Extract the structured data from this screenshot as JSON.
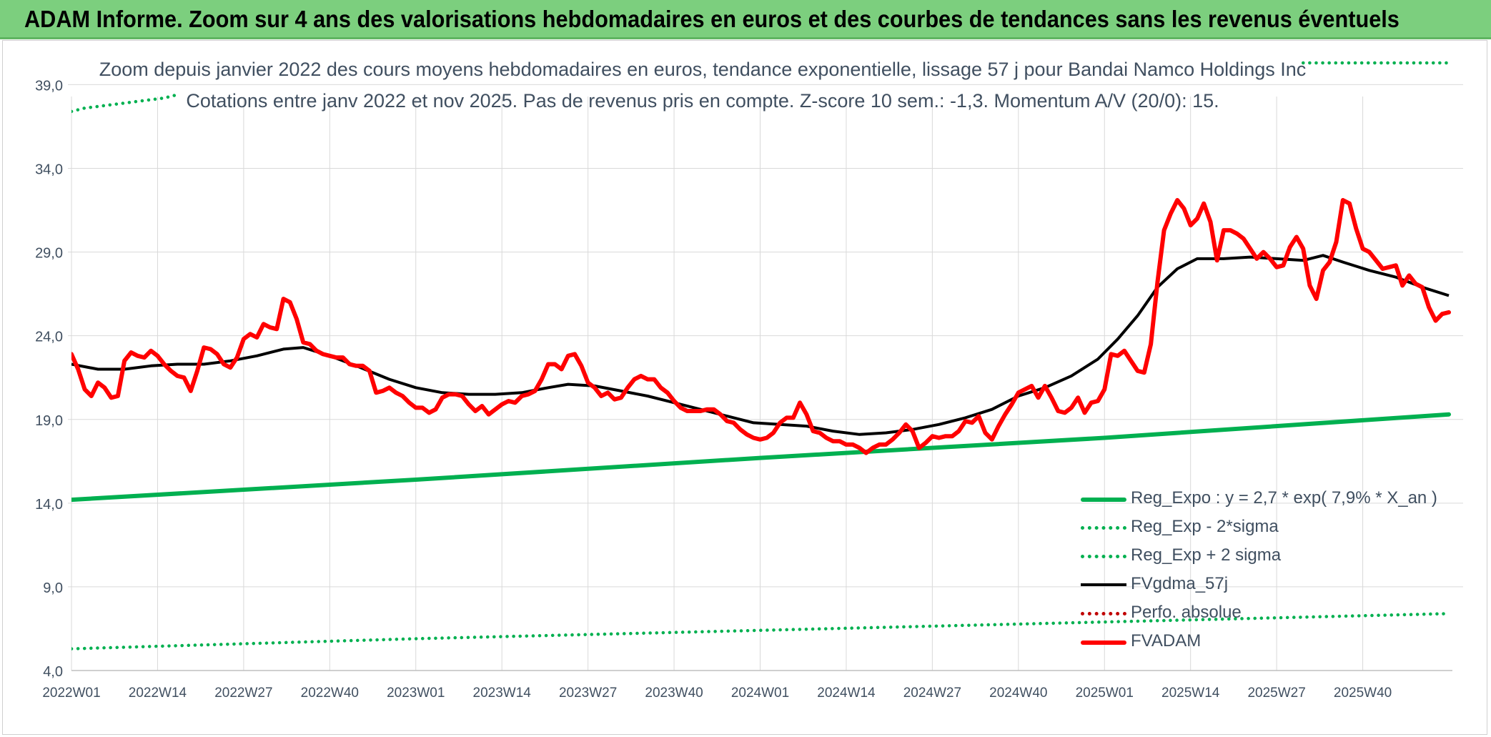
{
  "banner": {
    "title": "ADAM Informe. Zoom sur 4 ans des valorisations hebdomadaires en euros et des courbes de tendances sans les revenus éventuels"
  },
  "colors": {
    "banner_bg": "#7ccf7e",
    "reg_expo": "#00b050",
    "fvgdma": "#000000",
    "fvadam": "#ff0000",
    "perfo": "#c00000",
    "grid": "#d9d9d9",
    "text": "#404f60"
  },
  "chart_data": {
    "type": "line",
    "title": "Zoom depuis janvier 2022 des cours moyens hebdomadaires en euros, tendance exponentielle, lissage 57 j pour Bandai Namco Holdings Inc",
    "subtitle": "Cotations entre janv 2022 et nov 2025. Pas de revenus pris en compte. Z-score 10 sem.: -1,3. Momentum A/V (20/0): 15.",
    "xlabel": "",
    "ylabel": "",
    "ylim": [
      4,
      40
    ],
    "y_ticks": [
      "4,0",
      "9,0",
      "14,0",
      "19,0",
      "24,0",
      "29,0",
      "34,0",
      "39,0"
    ],
    "y_tick_values": [
      4,
      9,
      14,
      19,
      24,
      29,
      34,
      39
    ],
    "x_tick_labels": [
      "2022W01",
      "2022W14",
      "2022W27",
      "2022W40",
      "2023W01",
      "2023W14",
      "2023W27",
      "2023W40",
      "2024W01",
      "2024W14",
      "2024W27",
      "2024W40",
      "2025W01",
      "2025W14",
      "2025W27",
      "2025W40"
    ],
    "x_tick_weeks": [
      0,
      13,
      26,
      39,
      52,
      65,
      78,
      91,
      104,
      117,
      130,
      143,
      156,
      169,
      182,
      195
    ],
    "x_range": [
      0,
      208
    ],
    "grid": true,
    "legend_position": "bottom-right",
    "series": [
      {
        "name": "Reg_Expo : y = 2,7 * exp( 7,9% *  X_an )",
        "style": "solid-thick",
        "color": "#00b050",
        "points": [
          [
            0,
            14.2
          ],
          [
            52,
            15.4
          ],
          [
            104,
            16.7
          ],
          [
            156,
            17.9
          ],
          [
            208,
            19.3
          ]
        ]
      },
      {
        "name": "Reg_Exp - 2*sigma",
        "style": "dotted",
        "color": "#00b050",
        "points": [
          [
            0,
            5.3
          ],
          [
            52,
            5.9
          ],
          [
            104,
            6.4
          ],
          [
            156,
            6.9
          ],
          [
            208,
            7.4
          ]
        ]
      },
      {
        "name": "Reg_Exp + 2 sigma",
        "style": "dotted",
        "color": "#00b050",
        "points": [
          [
            0,
            37.4
          ],
          [
            2,
            37.6
          ],
          [
            4,
            37.7
          ],
          [
            6,
            37.8
          ],
          [
            8,
            37.9
          ],
          [
            10,
            38.0
          ],
          [
            12,
            38.1
          ],
          [
            14,
            38.2
          ],
          [
            16,
            38.4
          ]
        ],
        "points_right": [
          [
            186,
            40.3
          ],
          [
            196,
            40.3
          ],
          [
            208,
            40.3
          ]
        ]
      },
      {
        "name": "FVgdma_57j",
        "style": "solid",
        "color": "#000000",
        "points": [
          [
            0,
            22.3
          ],
          [
            4,
            22.0
          ],
          [
            8,
            22.0
          ],
          [
            12,
            22.2
          ],
          [
            16,
            22.3
          ],
          [
            20,
            22.3
          ],
          [
            24,
            22.5
          ],
          [
            28,
            22.8
          ],
          [
            32,
            23.2
          ],
          [
            35,
            23.3
          ],
          [
            39,
            22.8
          ],
          [
            43,
            22.2
          ],
          [
            48,
            21.4
          ],
          [
            52,
            20.9
          ],
          [
            56,
            20.6
          ],
          [
            60,
            20.5
          ],
          [
            64,
            20.5
          ],
          [
            68,
            20.6
          ],
          [
            72,
            20.9
          ],
          [
            75,
            21.1
          ],
          [
            79,
            21.0
          ],
          [
            83,
            20.7
          ],
          [
            87,
            20.4
          ],
          [
            91,
            20.0
          ],
          [
            95,
            19.6
          ],
          [
            99,
            19.2
          ],
          [
            103,
            18.8
          ],
          [
            107,
            18.7
          ],
          [
            111,
            18.6
          ],
          [
            115,
            18.3
          ],
          [
            119,
            18.1
          ],
          [
            123,
            18.2
          ],
          [
            127,
            18.4
          ],
          [
            131,
            18.7
          ],
          [
            135,
            19.1
          ],
          [
            139,
            19.6
          ],
          [
            143,
            20.4
          ],
          [
            147,
            20.9
          ],
          [
            151,
            21.6
          ],
          [
            155,
            22.6
          ],
          [
            158,
            23.8
          ],
          [
            161,
            25.2
          ],
          [
            164,
            26.9
          ],
          [
            167,
            28.0
          ],
          [
            170,
            28.6
          ],
          [
            174,
            28.6
          ],
          [
            178,
            28.7
          ],
          [
            182,
            28.6
          ],
          [
            186,
            28.5
          ],
          [
            189,
            28.8
          ],
          [
            192,
            28.4
          ],
          [
            196,
            27.9
          ],
          [
            200,
            27.5
          ],
          [
            204,
            26.9
          ],
          [
            208,
            26.4
          ]
        ]
      },
      {
        "name": "Perfo. absolue",
        "style": "dotted",
        "color": "#c00000",
        "points": []
      },
      {
        "name": "FVADAM",
        "style": "solid-thick",
        "color": "#ff0000",
        "points": [
          [
            0,
            22.9
          ],
          [
            1,
            22.0
          ],
          [
            2,
            20.8
          ],
          [
            3,
            20.4
          ],
          [
            4,
            21.2
          ],
          [
            5,
            20.9
          ],
          [
            6,
            20.3
          ],
          [
            7,
            20.4
          ],
          [
            8,
            22.5
          ],
          [
            9,
            23.0
          ],
          [
            10,
            22.8
          ],
          [
            11,
            22.7
          ],
          [
            12,
            23.1
          ],
          [
            13,
            22.8
          ],
          [
            14,
            22.3
          ],
          [
            15,
            21.9
          ],
          [
            16,
            21.6
          ],
          [
            17,
            21.5
          ],
          [
            18,
            20.7
          ],
          [
            19,
            21.9
          ],
          [
            20,
            23.3
          ],
          [
            21,
            23.2
          ],
          [
            22,
            22.9
          ],
          [
            23,
            22.3
          ],
          [
            24,
            22.1
          ],
          [
            25,
            22.7
          ],
          [
            26,
            23.8
          ],
          [
            27,
            24.1
          ],
          [
            28,
            23.9
          ],
          [
            29,
            24.7
          ],
          [
            30,
            24.5
          ],
          [
            31,
            24.4
          ],
          [
            32,
            26.2
          ],
          [
            33,
            26.0
          ],
          [
            34,
            25.0
          ],
          [
            35,
            23.6
          ],
          [
            36,
            23.5
          ],
          [
            37,
            23.1
          ],
          [
            38,
            22.9
          ],
          [
            39,
            22.8
          ],
          [
            40,
            22.7
          ],
          [
            41,
            22.7
          ],
          [
            42,
            22.3
          ],
          [
            43,
            22.2
          ],
          [
            44,
            22.2
          ],
          [
            45,
            21.9
          ],
          [
            46,
            20.6
          ],
          [
            47,
            20.7
          ],
          [
            48,
            20.9
          ],
          [
            49,
            20.6
          ],
          [
            50,
            20.4
          ],
          [
            51,
            20.0
          ],
          [
            52,
            19.7
          ],
          [
            53,
            19.7
          ],
          [
            54,
            19.4
          ],
          [
            55,
            19.6
          ],
          [
            56,
            20.3
          ],
          [
            57,
            20.5
          ],
          [
            58,
            20.5
          ],
          [
            59,
            20.4
          ],
          [
            60,
            19.9
          ],
          [
            61,
            19.5
          ],
          [
            62,
            19.8
          ],
          [
            63,
            19.3
          ],
          [
            64,
            19.6
          ],
          [
            65,
            19.9
          ],
          [
            66,
            20.1
          ],
          [
            67,
            20.0
          ],
          [
            68,
            20.4
          ],
          [
            69,
            20.5
          ],
          [
            70,
            20.7
          ],
          [
            71,
            21.4
          ],
          [
            72,
            22.3
          ],
          [
            73,
            22.3
          ],
          [
            74,
            22.0
          ],
          [
            75,
            22.8
          ],
          [
            76,
            22.9
          ],
          [
            77,
            22.2
          ],
          [
            78,
            21.2
          ],
          [
            79,
            20.9
          ],
          [
            80,
            20.4
          ],
          [
            81,
            20.6
          ],
          [
            82,
            20.2
          ],
          [
            83,
            20.3
          ],
          [
            84,
            20.9
          ],
          [
            85,
            21.4
          ],
          [
            86,
            21.6
          ],
          [
            87,
            21.4
          ],
          [
            88,
            21.4
          ],
          [
            89,
            20.9
          ],
          [
            90,
            20.6
          ],
          [
            91,
            20.1
          ],
          [
            92,
            19.7
          ],
          [
            93,
            19.5
          ],
          [
            94,
            19.5
          ],
          [
            95,
            19.5
          ],
          [
            96,
            19.6
          ],
          [
            97,
            19.6
          ],
          [
            98,
            19.3
          ],
          [
            99,
            18.9
          ],
          [
            100,
            18.8
          ],
          [
            101,
            18.4
          ],
          [
            102,
            18.1
          ],
          [
            103,
            17.9
          ],
          [
            104,
            17.8
          ],
          [
            105,
            17.9
          ],
          [
            106,
            18.2
          ],
          [
            107,
            18.8
          ],
          [
            108,
            19.1
          ],
          [
            109,
            19.1
          ],
          [
            110,
            20.0
          ],
          [
            111,
            19.3
          ],
          [
            112,
            18.3
          ],
          [
            113,
            18.2
          ],
          [
            114,
            17.9
          ],
          [
            115,
            17.7
          ],
          [
            116,
            17.7
          ],
          [
            117,
            17.5
          ],
          [
            118,
            17.5
          ],
          [
            119,
            17.3
          ],
          [
            120,
            17.0
          ],
          [
            121,
            17.3
          ],
          [
            122,
            17.5
          ],
          [
            123,
            17.5
          ],
          [
            124,
            17.8
          ],
          [
            125,
            18.2
          ],
          [
            126,
            18.7
          ],
          [
            127,
            18.3
          ],
          [
            128,
            17.3
          ],
          [
            129,
            17.6
          ],
          [
            130,
            18.0
          ],
          [
            131,
            17.9
          ],
          [
            132,
            18.0
          ],
          [
            133,
            18.0
          ],
          [
            134,
            18.3
          ],
          [
            135,
            18.9
          ],
          [
            136,
            18.8
          ],
          [
            137,
            19.2
          ],
          [
            138,
            18.2
          ],
          [
            139,
            17.8
          ],
          [
            140,
            18.6
          ],
          [
            141,
            19.3
          ],
          [
            142,
            19.9
          ],
          [
            143,
            20.6
          ],
          [
            144,
            20.8
          ],
          [
            145,
            21.0
          ],
          [
            146,
            20.3
          ],
          [
            147,
            21.0
          ],
          [
            148,
            20.3
          ],
          [
            149,
            19.5
          ],
          [
            150,
            19.4
          ],
          [
            151,
            19.7
          ],
          [
            152,
            20.3
          ],
          [
            153,
            19.4
          ],
          [
            154,
            20.0
          ],
          [
            155,
            20.1
          ],
          [
            156,
            20.8
          ],
          [
            157,
            22.9
          ],
          [
            158,
            22.8
          ],
          [
            159,
            23.1
          ],
          [
            160,
            22.5
          ],
          [
            161,
            21.9
          ],
          [
            162,
            21.8
          ],
          [
            163,
            23.5
          ],
          [
            164,
            27.2
          ],
          [
            165,
            30.3
          ],
          [
            166,
            31.3
          ],
          [
            167,
            32.1
          ],
          [
            168,
            31.6
          ],
          [
            169,
            30.6
          ],
          [
            170,
            31.0
          ],
          [
            171,
            31.9
          ],
          [
            172,
            30.8
          ],
          [
            173,
            28.5
          ],
          [
            174,
            30.3
          ],
          [
            175,
            30.3
          ],
          [
            176,
            30.1
          ],
          [
            177,
            29.8
          ],
          [
            178,
            29.2
          ],
          [
            179,
            28.6
          ],
          [
            180,
            29.0
          ],
          [
            181,
            28.6
          ],
          [
            182,
            28.1
          ],
          [
            183,
            28.2
          ],
          [
            184,
            29.3
          ],
          [
            185,
            29.9
          ],
          [
            186,
            29.2
          ],
          [
            187,
            27.0
          ],
          [
            188,
            26.2
          ],
          [
            189,
            27.9
          ],
          [
            190,
            28.4
          ],
          [
            191,
            29.6
          ],
          [
            192,
            32.1
          ],
          [
            193,
            31.9
          ],
          [
            194,
            30.4
          ],
          [
            195,
            29.2
          ],
          [
            196,
            29.0
          ],
          [
            197,
            28.5
          ],
          [
            198,
            28.0
          ],
          [
            199,
            28.1
          ],
          [
            200,
            28.2
          ],
          [
            201,
            27.0
          ],
          [
            202,
            27.6
          ],
          [
            203,
            27.1
          ],
          [
            204,
            26.9
          ],
          [
            205,
            25.7
          ],
          [
            206,
            24.9
          ],
          [
            207,
            25.3
          ],
          [
            208,
            25.4
          ]
        ]
      }
    ]
  }
}
